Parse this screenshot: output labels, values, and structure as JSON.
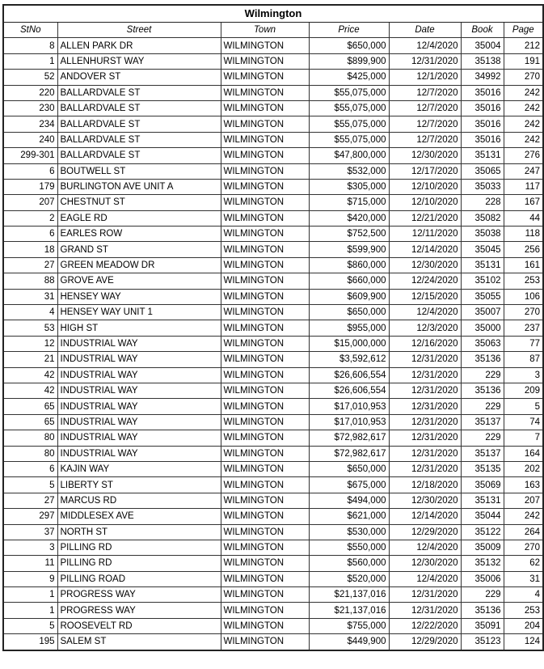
{
  "title": "Wilmington",
  "columns": [
    "StNo",
    "Street",
    "Town",
    "Price",
    "Date",
    "Book",
    "Page"
  ],
  "rows": [
    [
      "8",
      "ALLEN PARK DR",
      "WILMINGTON",
      "$650,000",
      "12/4/2020",
      "35004",
      "212"
    ],
    [
      "1",
      "ALLENHURST WAY",
      "WILMINGTON",
      "$899,900",
      "12/31/2020",
      "35138",
      "191"
    ],
    [
      "52",
      "ANDOVER ST",
      "WILMINGTON",
      "$425,000",
      "12/1/2020",
      "34992",
      "270"
    ],
    [
      "220",
      "BALLARDVALE ST",
      "WILMINGTON",
      "$55,075,000",
      "12/7/2020",
      "35016",
      "242"
    ],
    [
      "230",
      "BALLARDVALE ST",
      "WILMINGTON",
      "$55,075,000",
      "12/7/2020",
      "35016",
      "242"
    ],
    [
      "234",
      "BALLARDVALE ST",
      "WILMINGTON",
      "$55,075,000",
      "12/7/2020",
      "35016",
      "242"
    ],
    [
      "240",
      "BALLARDVALE ST",
      "WILMINGTON",
      "$55,075,000",
      "12/7/2020",
      "35016",
      "242"
    ],
    [
      "299-301",
      "BALLARDVALE ST",
      "WILMINGTON",
      "$47,800,000",
      "12/30/2020",
      "35131",
      "276"
    ],
    [
      "6",
      "BOUTWELL ST",
      "WILMINGTON",
      "$532,000",
      "12/17/2020",
      "35065",
      "247"
    ],
    [
      "179",
      "BURLINGTON AVE UNIT A",
      "WILMINGTON",
      "$305,000",
      "12/10/2020",
      "35033",
      "117"
    ],
    [
      "207",
      "CHESTNUT ST",
      "WILMINGTON",
      "$715,000",
      "12/10/2020",
      "228",
      "167"
    ],
    [
      "2",
      "EAGLE RD",
      "WILMINGTON",
      "$420,000",
      "12/21/2020",
      "35082",
      "44"
    ],
    [
      "6",
      "EARLES ROW",
      "WILMINGTON",
      "$752,500",
      "12/11/2020",
      "35038",
      "118"
    ],
    [
      "18",
      "GRAND ST",
      "WILMINGTON",
      "$599,900",
      "12/14/2020",
      "35045",
      "256"
    ],
    [
      "27",
      "GREEN MEADOW DR",
      "WILMINGTON",
      "$860,000",
      "12/30/2020",
      "35131",
      "161"
    ],
    [
      "88",
      "GROVE AVE",
      "WILMINGTON",
      "$660,000",
      "12/24/2020",
      "35102",
      "253"
    ],
    [
      "31",
      "HENSEY WAY",
      "WILMINGTON",
      "$609,900",
      "12/15/2020",
      "35055",
      "106"
    ],
    [
      "4",
      "HENSEY WAY UNIT 1",
      "WILMINGTON",
      "$650,000",
      "12/4/2020",
      "35007",
      "270"
    ],
    [
      "53",
      "HIGH ST",
      "WILMINGTON",
      "$955,000",
      "12/3/2020",
      "35000",
      "237"
    ],
    [
      "12",
      "INDUSTRIAL WAY",
      "WILMINGTON",
      "$15,000,000",
      "12/16/2020",
      "35063",
      "77"
    ],
    [
      "21",
      "INDUSTRIAL WAY",
      "WILMINGTON",
      "$3,592,612",
      "12/31/2020",
      "35136",
      "87"
    ],
    [
      "42",
      "INDUSTRIAL WAY",
      "WILMINGTON",
      "$26,606,554",
      "12/31/2020",
      "229",
      "3"
    ],
    [
      "42",
      "INDUSTRIAL WAY",
      "WILMINGTON",
      "$26,606,554",
      "12/31/2020",
      "35136",
      "209"
    ],
    [
      "65",
      "INDUSTRIAL WAY",
      "WILMINGTON",
      "$17,010,953",
      "12/31/2020",
      "229",
      "5"
    ],
    [
      "65",
      "INDUSTRIAL WAY",
      "WILMINGTON",
      "$17,010,953",
      "12/31/2020",
      "35137",
      "74"
    ],
    [
      "80",
      "INDUSTRIAL WAY",
      "WILMINGTON",
      "$72,982,617",
      "12/31/2020",
      "229",
      "7"
    ],
    [
      "80",
      "INDUSTRIAL WAY",
      "WILMINGTON",
      "$72,982,617",
      "12/31/2020",
      "35137",
      "164"
    ],
    [
      "6",
      "KAJIN WAY",
      "WILMINGTON",
      "$650,000",
      "12/31/2020",
      "35135",
      "202"
    ],
    [
      "5",
      "LIBERTY ST",
      "WILMINGTON",
      "$675,000",
      "12/18/2020",
      "35069",
      "163"
    ],
    [
      "27",
      "MARCUS RD",
      "WILMINGTON",
      "$494,000",
      "12/30/2020",
      "35131",
      "207"
    ],
    [
      "297",
      "MIDDLESEX AVE",
      "WILMINGTON",
      "$621,000",
      "12/14/2020",
      "35044",
      "242"
    ],
    [
      "37",
      "NORTH ST",
      "WILMINGTON",
      "$530,000",
      "12/29/2020",
      "35122",
      "264"
    ],
    [
      "3",
      "PILLING RD",
      "WILMINGTON",
      "$550,000",
      "12/4/2020",
      "35009",
      "270"
    ],
    [
      "11",
      "PILLING RD",
      "WILMINGTON",
      "$560,000",
      "12/30/2020",
      "35132",
      "62"
    ],
    [
      "9",
      "PILLING ROAD",
      "WILMINGTON",
      "$520,000",
      "12/4/2020",
      "35006",
      "31"
    ],
    [
      "1",
      "PROGRESS WAY",
      "WILMINGTON",
      "$21,137,016",
      "12/31/2020",
      "229",
      "4"
    ],
    [
      "1",
      "PROGRESS WAY",
      "WILMINGTON",
      "$21,137,016",
      "12/31/2020",
      "35136",
      "253"
    ],
    [
      "5",
      "ROOSEVELT RD",
      "WILMINGTON",
      "$755,000",
      "12/22/2020",
      "35091",
      "204"
    ],
    [
      "195",
      "SALEM ST",
      "WILMINGTON",
      "$449,900",
      "12/29/2020",
      "35123",
      "124"
    ]
  ]
}
